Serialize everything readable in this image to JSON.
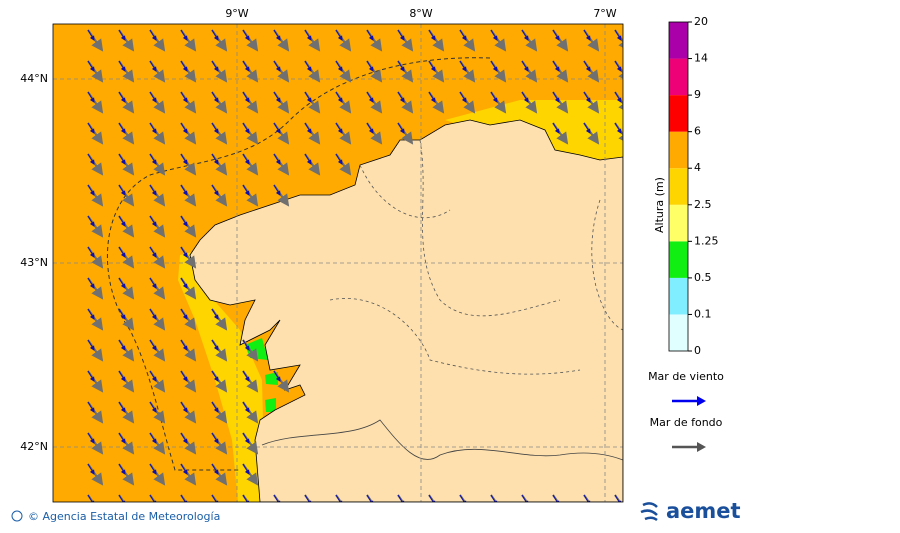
{
  "map": {
    "lon_labels": [
      "9°W",
      "8°W",
      "7°W"
    ],
    "lat_labels": [
      "44°N",
      "43°N",
      "42°N"
    ],
    "colorbar": {
      "title": "Altura (m)",
      "labels": [
        "0",
        "0.1",
        "0.5",
        "1.25",
        "2.5",
        "4",
        "6",
        "9",
        "14",
        "20"
      ],
      "colors": [
        "#e0ffff",
        "#80eeff",
        "#11ee11",
        "#ffff66",
        "#ffd500",
        "#ffaa00",
        "#ff0000",
        "#ee0077",
        "#aa00aa"
      ]
    },
    "legend": [
      {
        "label": "Mar de viento",
        "color": "#0000ee"
      },
      {
        "label": "Mar de fondo",
        "color": "#555555"
      }
    ],
    "credit": "© Agencia Estatal de Meteorología",
    "logo": "aemet"
  }
}
